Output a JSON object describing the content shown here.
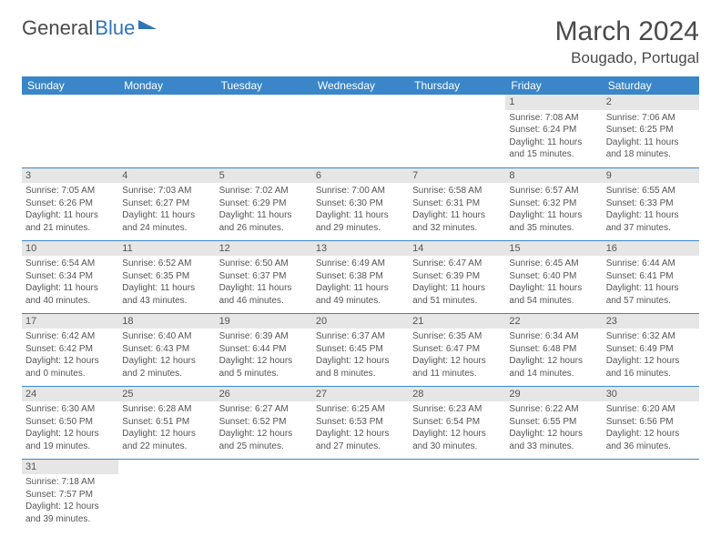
{
  "logo": {
    "text1": "General",
    "text2": "Blue"
  },
  "title": "March 2024",
  "location": "Bougado, Portugal",
  "colors": {
    "header_bg": "#3a86c8",
    "header_text": "#ffffff",
    "daynum_bg": "#e6e6e6",
    "border": "#3a86c8",
    "logo_blue": "#2f75b5",
    "text": "#555555"
  },
  "weekdays": [
    "Sunday",
    "Monday",
    "Tuesday",
    "Wednesday",
    "Thursday",
    "Friday",
    "Saturday"
  ],
  "weeks": [
    [
      null,
      null,
      null,
      null,
      null,
      {
        "n": "1",
        "sr": "Sunrise: 7:08 AM",
        "ss": "Sunset: 6:24 PM",
        "dl": "Daylight: 11 hours and 15 minutes."
      },
      {
        "n": "2",
        "sr": "Sunrise: 7:06 AM",
        "ss": "Sunset: 6:25 PM",
        "dl": "Daylight: 11 hours and 18 minutes."
      }
    ],
    [
      {
        "n": "3",
        "sr": "Sunrise: 7:05 AM",
        "ss": "Sunset: 6:26 PM",
        "dl": "Daylight: 11 hours and 21 minutes."
      },
      {
        "n": "4",
        "sr": "Sunrise: 7:03 AM",
        "ss": "Sunset: 6:27 PM",
        "dl": "Daylight: 11 hours and 24 minutes."
      },
      {
        "n": "5",
        "sr": "Sunrise: 7:02 AM",
        "ss": "Sunset: 6:29 PM",
        "dl": "Daylight: 11 hours and 26 minutes."
      },
      {
        "n": "6",
        "sr": "Sunrise: 7:00 AM",
        "ss": "Sunset: 6:30 PM",
        "dl": "Daylight: 11 hours and 29 minutes."
      },
      {
        "n": "7",
        "sr": "Sunrise: 6:58 AM",
        "ss": "Sunset: 6:31 PM",
        "dl": "Daylight: 11 hours and 32 minutes."
      },
      {
        "n": "8",
        "sr": "Sunrise: 6:57 AM",
        "ss": "Sunset: 6:32 PM",
        "dl": "Daylight: 11 hours and 35 minutes."
      },
      {
        "n": "9",
        "sr": "Sunrise: 6:55 AM",
        "ss": "Sunset: 6:33 PM",
        "dl": "Daylight: 11 hours and 37 minutes."
      }
    ],
    [
      {
        "n": "10",
        "sr": "Sunrise: 6:54 AM",
        "ss": "Sunset: 6:34 PM",
        "dl": "Daylight: 11 hours and 40 minutes."
      },
      {
        "n": "11",
        "sr": "Sunrise: 6:52 AM",
        "ss": "Sunset: 6:35 PM",
        "dl": "Daylight: 11 hours and 43 minutes."
      },
      {
        "n": "12",
        "sr": "Sunrise: 6:50 AM",
        "ss": "Sunset: 6:37 PM",
        "dl": "Daylight: 11 hours and 46 minutes."
      },
      {
        "n": "13",
        "sr": "Sunrise: 6:49 AM",
        "ss": "Sunset: 6:38 PM",
        "dl": "Daylight: 11 hours and 49 minutes."
      },
      {
        "n": "14",
        "sr": "Sunrise: 6:47 AM",
        "ss": "Sunset: 6:39 PM",
        "dl": "Daylight: 11 hours and 51 minutes."
      },
      {
        "n": "15",
        "sr": "Sunrise: 6:45 AM",
        "ss": "Sunset: 6:40 PM",
        "dl": "Daylight: 11 hours and 54 minutes."
      },
      {
        "n": "16",
        "sr": "Sunrise: 6:44 AM",
        "ss": "Sunset: 6:41 PM",
        "dl": "Daylight: 11 hours and 57 minutes."
      }
    ],
    [
      {
        "n": "17",
        "sr": "Sunrise: 6:42 AM",
        "ss": "Sunset: 6:42 PM",
        "dl": "Daylight: 12 hours and 0 minutes."
      },
      {
        "n": "18",
        "sr": "Sunrise: 6:40 AM",
        "ss": "Sunset: 6:43 PM",
        "dl": "Daylight: 12 hours and 2 minutes."
      },
      {
        "n": "19",
        "sr": "Sunrise: 6:39 AM",
        "ss": "Sunset: 6:44 PM",
        "dl": "Daylight: 12 hours and 5 minutes."
      },
      {
        "n": "20",
        "sr": "Sunrise: 6:37 AM",
        "ss": "Sunset: 6:45 PM",
        "dl": "Daylight: 12 hours and 8 minutes."
      },
      {
        "n": "21",
        "sr": "Sunrise: 6:35 AM",
        "ss": "Sunset: 6:47 PM",
        "dl": "Daylight: 12 hours and 11 minutes."
      },
      {
        "n": "22",
        "sr": "Sunrise: 6:34 AM",
        "ss": "Sunset: 6:48 PM",
        "dl": "Daylight: 12 hours and 14 minutes."
      },
      {
        "n": "23",
        "sr": "Sunrise: 6:32 AM",
        "ss": "Sunset: 6:49 PM",
        "dl": "Daylight: 12 hours and 16 minutes."
      }
    ],
    [
      {
        "n": "24",
        "sr": "Sunrise: 6:30 AM",
        "ss": "Sunset: 6:50 PM",
        "dl": "Daylight: 12 hours and 19 minutes."
      },
      {
        "n": "25",
        "sr": "Sunrise: 6:28 AM",
        "ss": "Sunset: 6:51 PM",
        "dl": "Daylight: 12 hours and 22 minutes."
      },
      {
        "n": "26",
        "sr": "Sunrise: 6:27 AM",
        "ss": "Sunset: 6:52 PM",
        "dl": "Daylight: 12 hours and 25 minutes."
      },
      {
        "n": "27",
        "sr": "Sunrise: 6:25 AM",
        "ss": "Sunset: 6:53 PM",
        "dl": "Daylight: 12 hours and 27 minutes."
      },
      {
        "n": "28",
        "sr": "Sunrise: 6:23 AM",
        "ss": "Sunset: 6:54 PM",
        "dl": "Daylight: 12 hours and 30 minutes."
      },
      {
        "n": "29",
        "sr": "Sunrise: 6:22 AM",
        "ss": "Sunset: 6:55 PM",
        "dl": "Daylight: 12 hours and 33 minutes."
      },
      {
        "n": "30",
        "sr": "Sunrise: 6:20 AM",
        "ss": "Sunset: 6:56 PM",
        "dl": "Daylight: 12 hours and 36 minutes."
      }
    ],
    [
      {
        "n": "31",
        "sr": "Sunrise: 7:18 AM",
        "ss": "Sunset: 7:57 PM",
        "dl": "Daylight: 12 hours and 39 minutes."
      },
      null,
      null,
      null,
      null,
      null,
      null
    ]
  ]
}
